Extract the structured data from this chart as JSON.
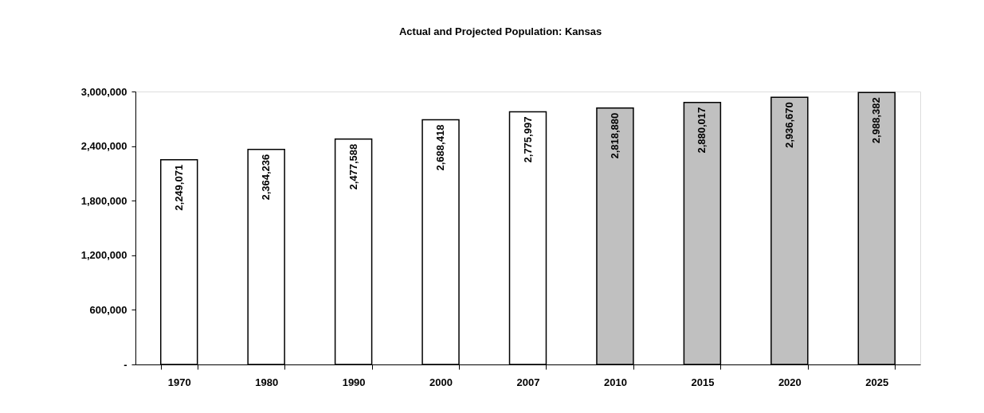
{
  "chart_data": {
    "type": "bar",
    "title": "Actual and Projected Population: Kansas",
    "categories": [
      "1970",
      "1980",
      "1990",
      "2000",
      "2007",
      "2010",
      "2015",
      "2020",
      "2025"
    ],
    "values": [
      2249071,
      2364236,
      2477588,
      2688418,
      2775997,
      2818880,
      2880017,
      2936670,
      2988382
    ],
    "colors": [
      "#ffffff",
      "#ffffff",
      "#ffffff",
      "#ffffff",
      "#ffffff",
      "#c0c0c0",
      "#c0c0c0",
      "#c0c0c0",
      "#c0c0c0"
    ],
    "value_labels": [
      "2,249,071",
      "2,364,236",
      "2,477,588",
      "2,688,418",
      "2,775,997",
      "2,818,880",
      "2,880,017",
      "2,936,670",
      "2,988,382"
    ],
    "ylim": [
      0,
      3000000
    ],
    "yticks": [
      {
        "value": 0,
        "label": "-"
      },
      {
        "value": 600000,
        "label": "600,000"
      },
      {
        "value": 1200000,
        "label": "1,200,000"
      },
      {
        "value": 1800000,
        "label": "1,800,000"
      },
      {
        "value": 2400000,
        "label": "2,400,000"
      },
      {
        "value": 3000000,
        "label": "3,000,000"
      }
    ]
  }
}
